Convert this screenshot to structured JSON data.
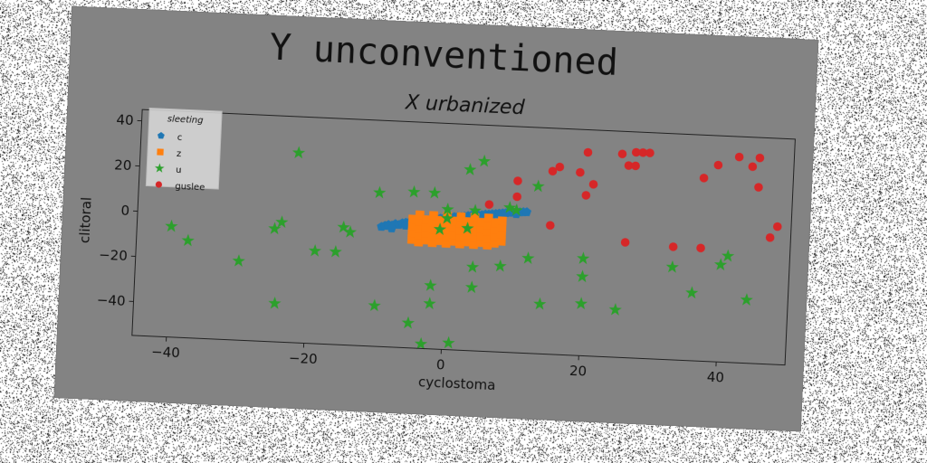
{
  "colors": {
    "series_c": "#1f77b4",
    "series_z": "#ff7f0e",
    "series_u": "#2ca02c",
    "series_guslee": "#d62728",
    "figure_background": "#838383",
    "page_background": "#ffffff"
  },
  "chart_data": {
    "type": "scatter",
    "suptitle": "Y unconventioned",
    "title": "X urbanized",
    "xlabel": "cyclostoma",
    "ylabel": "clitoral",
    "xlim": [
      -45,
      50
    ],
    "ylim": [
      -55,
      45
    ],
    "xticks": [
      -40,
      -20,
      0,
      20,
      40
    ],
    "yticks": [
      -40,
      -20,
      0,
      20,
      40
    ],
    "xtick_labels": [
      "−40",
      "−20",
      "0",
      "20",
      "40"
    ],
    "ytick_labels": [
      "−40",
      "−20",
      "0",
      "20",
      "40"
    ],
    "grid": false,
    "legend": {
      "title": "sleeting",
      "placement": "top-left",
      "entries": [
        "c",
        "z",
        "u",
        "guslee"
      ]
    },
    "series": [
      {
        "name": "c",
        "marker": "pentagon",
        "color": "#1f77b4",
        "points": [
          [
            -9.5,
            -2
          ],
          [
            -9,
            -1.5
          ],
          [
            -8.5,
            -1
          ],
          [
            -8,
            -1.2
          ],
          [
            -7.5,
            -0.5
          ],
          [
            -7,
            -0.8
          ],
          [
            -6.5,
            0
          ],
          [
            -6,
            0.3
          ],
          [
            -5.5,
            0.5
          ],
          [
            -5,
            0.8
          ],
          [
            -4.5,
            1
          ],
          [
            -4,
            1.2
          ],
          [
            -3.5,
            1.5
          ],
          [
            -3,
            1.5
          ],
          [
            -2.5,
            2
          ],
          [
            -2,
            2.2
          ],
          [
            -1.5,
            2.5
          ],
          [
            -1,
            2.8
          ],
          [
            -0.5,
            3
          ],
          [
            0,
            3.2
          ],
          [
            0.5,
            3.5
          ],
          [
            1,
            3.8
          ],
          [
            1.5,
            4
          ],
          [
            2,
            4
          ],
          [
            2.5,
            4.2
          ],
          [
            3,
            4.5
          ],
          [
            3.5,
            4.8
          ],
          [
            4,
            5
          ],
          [
            4.5,
            5
          ],
          [
            5,
            5.2
          ],
          [
            5.5,
            5.5
          ],
          [
            6,
            5.6
          ],
          [
            6.5,
            5.8
          ],
          [
            7,
            6
          ],
          [
            7.5,
            6.2
          ],
          [
            8,
            6.4
          ],
          [
            8.5,
            6.6
          ],
          [
            9,
            6.8
          ],
          [
            9.5,
            7
          ],
          [
            10,
            7.1
          ],
          [
            10.5,
            7.2
          ],
          [
            11,
            7.3
          ],
          [
            11.5,
            7.4
          ],
          [
            -8,
            -2.5
          ],
          [
            -6,
            -1
          ],
          [
            -4,
            0
          ],
          [
            -2,
            1
          ],
          [
            0,
            2
          ],
          [
            2,
            3
          ],
          [
            4,
            4
          ],
          [
            6,
            4.8
          ],
          [
            8,
            5.5
          ],
          [
            10,
            6.3
          ]
        ]
      },
      {
        "name": "z",
        "marker": "square",
        "color": "#ff7f0e",
        "points": [
          [
            -5,
            -7
          ],
          [
            -5,
            -4
          ],
          [
            -5,
            -1
          ],
          [
            -5,
            2
          ],
          [
            -4,
            -8
          ],
          [
            -4,
            -5
          ],
          [
            -4,
            -2
          ],
          [
            -4,
            1
          ],
          [
            -4,
            4
          ],
          [
            -3,
            -7
          ],
          [
            -3,
            -4
          ],
          [
            -3,
            -1
          ],
          [
            -3,
            2
          ],
          [
            -2,
            -8
          ],
          [
            -2,
            -5
          ],
          [
            -2,
            -2
          ],
          [
            -2,
            1
          ],
          [
            -2,
            4
          ],
          [
            -1,
            -7
          ],
          [
            -1,
            -4
          ],
          [
            -1,
            -1
          ],
          [
            -1,
            2
          ],
          [
            0,
            -8
          ],
          [
            0,
            -5
          ],
          [
            0,
            -2
          ],
          [
            0,
            1
          ],
          [
            0,
            4
          ],
          [
            1,
            -7
          ],
          [
            1,
            -4
          ],
          [
            1,
            -1
          ],
          [
            1,
            2
          ],
          [
            2,
            -8
          ],
          [
            2,
            -5
          ],
          [
            2,
            -2
          ],
          [
            2,
            1
          ],
          [
            2,
            4
          ],
          [
            3,
            -7
          ],
          [
            3,
            -4
          ],
          [
            3,
            -1
          ],
          [
            3,
            2
          ],
          [
            4,
            -8
          ],
          [
            4,
            -5
          ],
          [
            4,
            -2
          ],
          [
            4,
            1
          ],
          [
            4,
            4
          ],
          [
            5,
            -7
          ],
          [
            5,
            -4
          ],
          [
            5,
            -1
          ],
          [
            5,
            2
          ],
          [
            6,
            -8
          ],
          [
            6,
            -5
          ],
          [
            6,
            -2
          ],
          [
            6,
            1
          ],
          [
            6,
            4
          ],
          [
            7,
            -7
          ],
          [
            7,
            -4
          ],
          [
            7,
            -1
          ],
          [
            7,
            2
          ],
          [
            8,
            -6
          ],
          [
            8,
            -3
          ],
          [
            8,
            0
          ],
          [
            8,
            3
          ]
        ]
      },
      {
        "name": "u",
        "marker": "star",
        "color": "#2ca02c",
        "points": [
          [
            -40,
            -6
          ],
          [
            -37.5,
            -12
          ],
          [
            -30,
            -20
          ],
          [
            -24.5,
            -38
          ],
          [
            -22,
            29
          ],
          [
            -25,
            -5
          ],
          [
            -24,
            -2
          ],
          [
            -19,
            -14
          ],
          [
            -16,
            -14
          ],
          [
            -15,
            -3
          ],
          [
            -14,
            -5
          ],
          [
            -10,
            -37
          ],
          [
            -10,
            13
          ],
          [
            -5,
            14
          ],
          [
            -5,
            -44
          ],
          [
            -2,
            14
          ],
          [
            -3,
            -53
          ],
          [
            -2,
            -35
          ],
          [
            -2,
            -27
          ],
          [
            -1,
            -2
          ],
          [
            0,
            7
          ],
          [
            0,
            3
          ],
          [
            1,
            -52
          ],
          [
            3,
            -1
          ],
          [
            3,
            25
          ],
          [
            4,
            -27
          ],
          [
            4,
            -18
          ],
          [
            4,
            7
          ],
          [
            5,
            29
          ],
          [
            8,
            -17
          ],
          [
            9,
            9
          ],
          [
            10,
            8
          ],
          [
            12,
            -13
          ],
          [
            13,
            19
          ],
          [
            14,
            -33
          ],
          [
            20,
            -12
          ],
          [
            20,
            -20
          ],
          [
            20,
            -32
          ],
          [
            25,
            -34
          ],
          [
            33,
            -14
          ],
          [
            36,
            -25
          ],
          [
            40,
            -12
          ],
          [
            41,
            -8
          ],
          [
            44,
            -27
          ]
        ]
      },
      {
        "name": "guslee",
        "marker": "circle",
        "color": "#d62728",
        "points": [
          [
            6,
            10
          ],
          [
            10,
            21
          ],
          [
            10,
            14
          ],
          [
            15,
            26
          ],
          [
            16,
            28
          ],
          [
            15,
            2
          ],
          [
            19,
            26
          ],
          [
            20,
            16
          ],
          [
            20,
            35
          ],
          [
            21,
            21
          ],
          [
            25,
            35
          ],
          [
            26,
            30
          ],
          [
            26,
            -4
          ],
          [
            27,
            36
          ],
          [
            27,
            30
          ],
          [
            28,
            36
          ],
          [
            29,
            36
          ],
          [
            33,
            -5
          ],
          [
            37,
            26
          ],
          [
            37,
            -5
          ],
          [
            39,
            32
          ],
          [
            42,
            36
          ],
          [
            44,
            32
          ],
          [
            45,
            36
          ],
          [
            45,
            23
          ],
          [
            47,
            1
          ],
          [
            48,
            6
          ]
        ]
      }
    ]
  }
}
